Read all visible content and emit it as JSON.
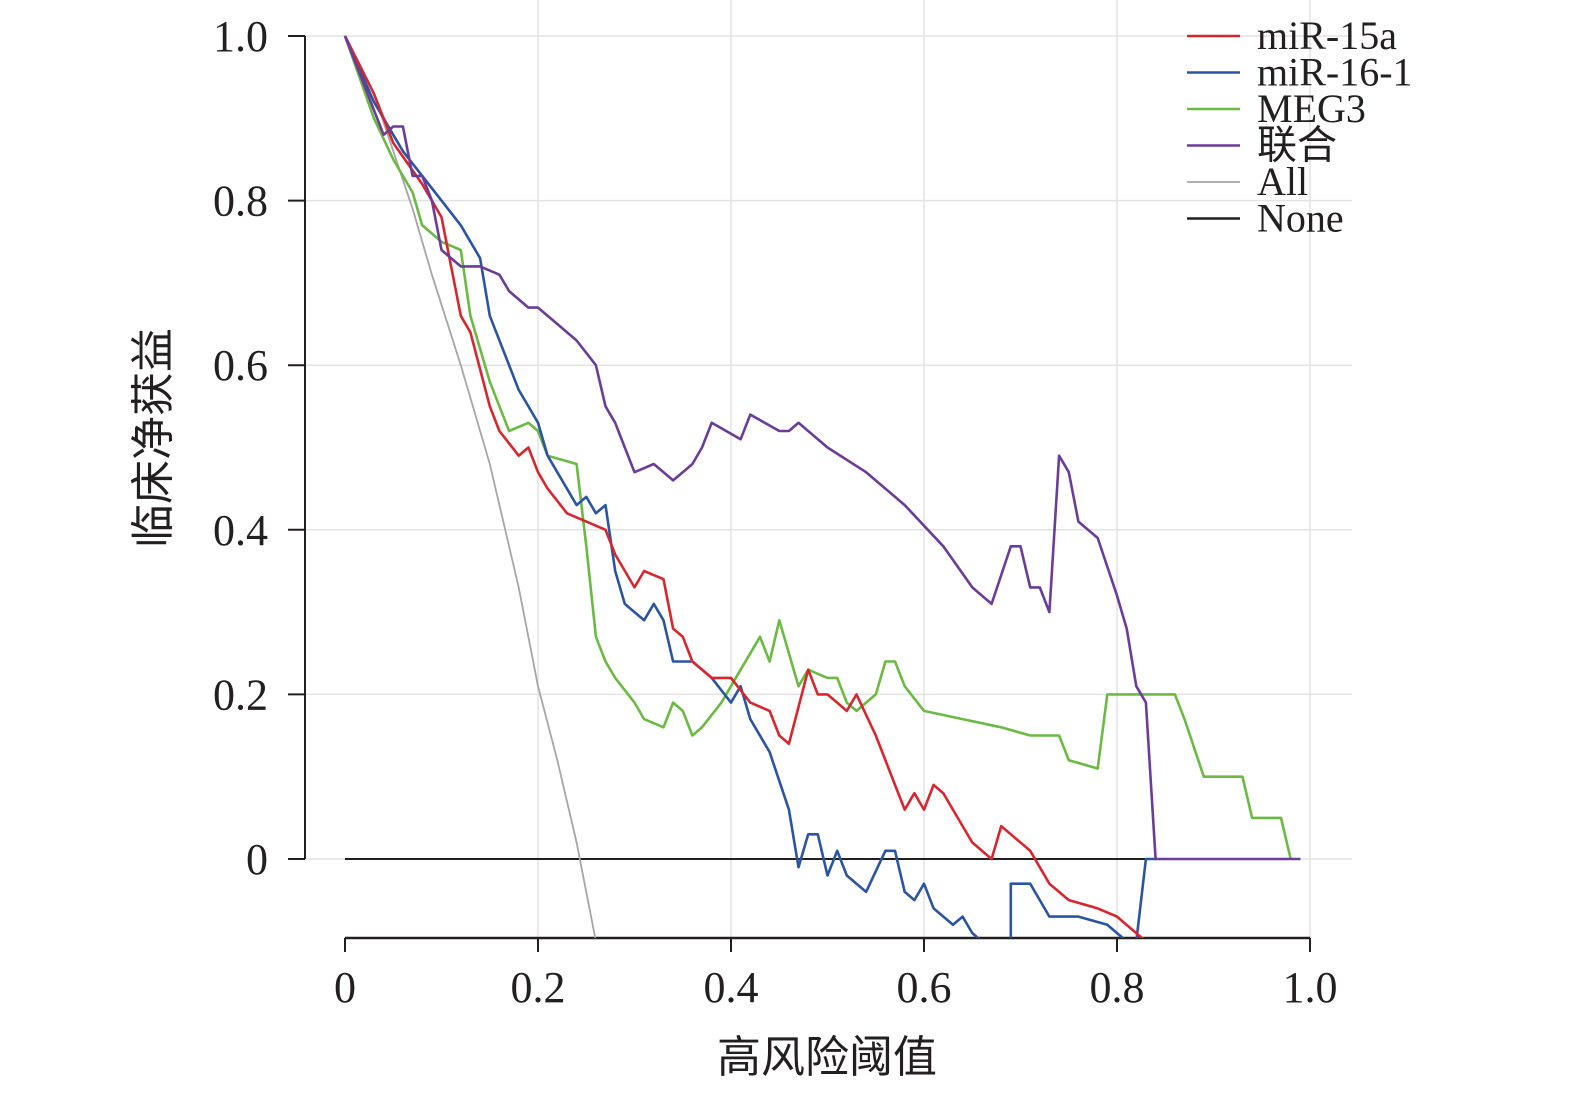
{
  "chart_data": {
    "type": "line",
    "title": "",
    "xlabel": "高风险阈值",
    "ylabel": "临床净获益",
    "xlim": [
      0,
      1.0
    ],
    "ylim": [
      -0.1,
      1.0
    ],
    "x_ticks": [
      0,
      0.2,
      0.4,
      0.6,
      0.8,
      1.0
    ],
    "y_ticks": [
      0,
      0.2,
      0.4,
      0.6,
      0.8,
      1.0
    ],
    "x_tick_labels": [
      "0",
      "0.2",
      "0.4",
      "0.6",
      "0.8",
      "1.0"
    ],
    "y_tick_labels": [
      "0",
      "0.2",
      "0.4",
      "0.6",
      "0.8",
      "1.0"
    ],
    "grid": true,
    "legend_position": "top-right",
    "series": [
      {
        "name": "miR-15a",
        "color": "#d7262e",
        "points": [
          [
            0,
            1.0
          ],
          [
            0.03,
            0.93
          ],
          [
            0.05,
            0.87
          ],
          [
            0.08,
            0.82
          ],
          [
            0.1,
            0.78
          ],
          [
            0.11,
            0.72
          ],
          [
            0.12,
            0.66
          ],
          [
            0.13,
            0.64
          ],
          [
            0.15,
            0.55
          ],
          [
            0.16,
            0.52
          ],
          [
            0.18,
            0.49
          ],
          [
            0.19,
            0.5
          ],
          [
            0.2,
            0.47
          ],
          [
            0.21,
            0.45
          ],
          [
            0.23,
            0.42
          ],
          [
            0.25,
            0.41
          ],
          [
            0.27,
            0.4
          ],
          [
            0.28,
            0.37
          ],
          [
            0.3,
            0.33
          ],
          [
            0.31,
            0.35
          ],
          [
            0.33,
            0.34
          ],
          [
            0.34,
            0.28
          ],
          [
            0.35,
            0.27
          ],
          [
            0.36,
            0.24
          ],
          [
            0.38,
            0.22
          ],
          [
            0.4,
            0.22
          ],
          [
            0.42,
            0.19
          ],
          [
            0.44,
            0.18
          ],
          [
            0.45,
            0.15
          ],
          [
            0.46,
            0.14
          ],
          [
            0.48,
            0.23
          ],
          [
            0.49,
            0.2
          ],
          [
            0.5,
            0.2
          ],
          [
            0.52,
            0.18
          ],
          [
            0.53,
            0.2
          ],
          [
            0.55,
            0.15
          ],
          [
            0.57,
            0.09
          ],
          [
            0.58,
            0.06
          ],
          [
            0.59,
            0.08
          ],
          [
            0.6,
            0.06
          ],
          [
            0.61,
            0.09
          ],
          [
            0.62,
            0.08
          ],
          [
            0.64,
            0.04
          ],
          [
            0.65,
            0.02
          ],
          [
            0.67,
            0.0
          ],
          [
            0.68,
            0.04
          ],
          [
            0.7,
            0.02
          ],
          [
            0.71,
            0.01
          ],
          [
            0.73,
            -0.03
          ],
          [
            0.75,
            -0.05
          ],
          [
            0.78,
            -0.06
          ],
          [
            0.8,
            -0.07
          ],
          [
            0.82,
            -0.09
          ],
          [
            0.83,
            -0.1
          ]
        ]
      },
      {
        "name": "miR-16-1",
        "color": "#2b54a2",
        "points": [
          [
            0,
            1.0
          ],
          [
            0.03,
            0.92
          ],
          [
            0.06,
            0.86
          ],
          [
            0.1,
            0.8
          ],
          [
            0.12,
            0.77
          ],
          [
            0.14,
            0.73
          ],
          [
            0.15,
            0.66
          ],
          [
            0.17,
            0.6
          ],
          [
            0.18,
            0.57
          ],
          [
            0.19,
            0.55
          ],
          [
            0.2,
            0.53
          ],
          [
            0.21,
            0.49
          ],
          [
            0.22,
            0.47
          ],
          [
            0.24,
            0.43
          ],
          [
            0.25,
            0.44
          ],
          [
            0.26,
            0.42
          ],
          [
            0.27,
            0.43
          ],
          [
            0.28,
            0.35
          ],
          [
            0.29,
            0.31
          ],
          [
            0.31,
            0.29
          ],
          [
            0.32,
            0.31
          ],
          [
            0.33,
            0.29
          ],
          [
            0.34,
            0.24
          ],
          [
            0.36,
            0.24
          ],
          [
            0.38,
            0.22
          ],
          [
            0.4,
            0.19
          ],
          [
            0.41,
            0.21
          ],
          [
            0.42,
            0.17
          ],
          [
            0.44,
            0.13
          ],
          [
            0.46,
            0.06
          ],
          [
            0.47,
            -0.01
          ],
          [
            0.48,
            0.03
          ],
          [
            0.49,
            0.03
          ],
          [
            0.5,
            -0.02
          ],
          [
            0.51,
            0.01
          ],
          [
            0.52,
            -0.02
          ],
          [
            0.54,
            -0.04
          ],
          [
            0.56,
            0.01
          ],
          [
            0.57,
            0.01
          ],
          [
            0.58,
            -0.04
          ],
          [
            0.59,
            -0.05
          ],
          [
            0.6,
            -0.03
          ],
          [
            0.61,
            -0.06
          ],
          [
            0.63,
            -0.08
          ],
          [
            0.64,
            -0.07
          ],
          [
            0.65,
            -0.09
          ],
          [
            0.66,
            -0.1
          ]
        ]
      },
      {
        "name": "miR-16-1",
        "color": "#2b54a2",
        "points": [
          [
            0.69,
            -0.1
          ],
          [
            0.69,
            -0.03
          ],
          [
            0.71,
            -0.03
          ],
          [
            0.72,
            -0.05
          ],
          [
            0.73,
            -0.07
          ],
          [
            0.76,
            -0.07
          ],
          [
            0.79,
            -0.08
          ],
          [
            0.81,
            -0.1
          ]
        ]
      },
      {
        "name": "miR-16-1",
        "color": "#2b54a2",
        "points": [
          [
            0.82,
            -0.1
          ],
          [
            0.83,
            0.0
          ],
          [
            0.84,
            0.0
          ]
        ]
      },
      {
        "name": "MEG3",
        "color": "#6aba43",
        "points": [
          [
            0,
            1.0
          ],
          [
            0.03,
            0.9
          ],
          [
            0.05,
            0.85
          ],
          [
            0.07,
            0.81
          ],
          [
            0.08,
            0.77
          ],
          [
            0.1,
            0.75
          ],
          [
            0.12,
            0.74
          ],
          [
            0.13,
            0.66
          ],
          [
            0.14,
            0.62
          ],
          [
            0.15,
            0.58
          ],
          [
            0.16,
            0.55
          ],
          [
            0.17,
            0.52
          ],
          [
            0.19,
            0.53
          ],
          [
            0.2,
            0.52
          ],
          [
            0.21,
            0.49
          ],
          [
            0.24,
            0.48
          ],
          [
            0.25,
            0.38
          ],
          [
            0.26,
            0.27
          ],
          [
            0.27,
            0.24
          ],
          [
            0.28,
            0.22
          ],
          [
            0.3,
            0.19
          ],
          [
            0.31,
            0.17
          ],
          [
            0.33,
            0.16
          ],
          [
            0.34,
            0.19
          ],
          [
            0.35,
            0.18
          ],
          [
            0.36,
            0.15
          ],
          [
            0.37,
            0.16
          ],
          [
            0.39,
            0.19
          ],
          [
            0.41,
            0.23
          ],
          [
            0.42,
            0.25
          ],
          [
            0.43,
            0.27
          ],
          [
            0.44,
            0.24
          ],
          [
            0.45,
            0.29
          ],
          [
            0.46,
            0.25
          ],
          [
            0.47,
            0.21
          ],
          [
            0.48,
            0.23
          ],
          [
            0.5,
            0.22
          ],
          [
            0.51,
            0.22
          ],
          [
            0.52,
            0.19
          ],
          [
            0.53,
            0.18
          ],
          [
            0.54,
            0.19
          ],
          [
            0.55,
            0.2
          ],
          [
            0.56,
            0.24
          ],
          [
            0.57,
            0.24
          ],
          [
            0.58,
            0.21
          ],
          [
            0.6,
            0.18
          ],
          [
            0.64,
            0.17
          ],
          [
            0.68,
            0.16
          ],
          [
            0.71,
            0.15
          ],
          [
            0.74,
            0.15
          ],
          [
            0.75,
            0.12
          ],
          [
            0.78,
            0.11
          ],
          [
            0.79,
            0.2
          ],
          [
            0.86,
            0.2
          ],
          [
            0.87,
            0.17
          ],
          [
            0.89,
            0.1
          ],
          [
            0.93,
            0.1
          ],
          [
            0.94,
            0.05
          ],
          [
            0.97,
            0.05
          ],
          [
            0.98,
            0.0
          ]
        ]
      },
      {
        "name": "联合",
        "color": "#6b3d98",
        "points": [
          [
            0,
            1.0
          ],
          [
            0.02,
            0.94
          ],
          [
            0.04,
            0.88
          ],
          [
            0.05,
            0.89
          ],
          [
            0.06,
            0.89
          ],
          [
            0.07,
            0.83
          ],
          [
            0.08,
            0.83
          ],
          [
            0.09,
            0.8
          ],
          [
            0.1,
            0.74
          ],
          [
            0.11,
            0.73
          ],
          [
            0.12,
            0.72
          ],
          [
            0.14,
            0.72
          ],
          [
            0.16,
            0.71
          ],
          [
            0.17,
            0.69
          ],
          [
            0.18,
            0.68
          ],
          [
            0.19,
            0.67
          ],
          [
            0.2,
            0.67
          ],
          [
            0.22,
            0.65
          ],
          [
            0.24,
            0.63
          ],
          [
            0.26,
            0.6
          ],
          [
            0.27,
            0.55
          ],
          [
            0.28,
            0.53
          ],
          [
            0.29,
            0.5
          ],
          [
            0.3,
            0.47
          ],
          [
            0.32,
            0.48
          ],
          [
            0.34,
            0.46
          ],
          [
            0.35,
            0.47
          ],
          [
            0.36,
            0.48
          ],
          [
            0.37,
            0.5
          ],
          [
            0.38,
            0.53
          ],
          [
            0.41,
            0.51
          ],
          [
            0.42,
            0.54
          ],
          [
            0.45,
            0.52
          ],
          [
            0.46,
            0.52
          ],
          [
            0.47,
            0.53
          ],
          [
            0.5,
            0.5
          ],
          [
            0.54,
            0.47
          ],
          [
            0.58,
            0.43
          ],
          [
            0.62,
            0.38
          ],
          [
            0.65,
            0.33
          ],
          [
            0.66,
            0.32
          ],
          [
            0.67,
            0.31
          ],
          [
            0.69,
            0.38
          ],
          [
            0.7,
            0.38
          ],
          [
            0.71,
            0.33
          ],
          [
            0.72,
            0.33
          ],
          [
            0.73,
            0.3
          ],
          [
            0.74,
            0.49
          ],
          [
            0.75,
            0.47
          ],
          [
            0.76,
            0.41
          ],
          [
            0.78,
            0.39
          ],
          [
            0.8,
            0.32
          ],
          [
            0.81,
            0.28
          ],
          [
            0.82,
            0.21
          ],
          [
            0.83,
            0.19
          ],
          [
            0.84,
            0.0
          ],
          [
            0.99,
            0.0
          ]
        ]
      },
      {
        "name": "All",
        "color": "#a6a6a6",
        "points": [
          [
            0,
            1.0
          ],
          [
            0.03,
            0.93
          ],
          [
            0.05,
            0.86
          ],
          [
            0.07,
            0.79
          ],
          [
            0.09,
            0.71
          ],
          [
            0.12,
            0.6
          ],
          [
            0.15,
            0.48
          ],
          [
            0.18,
            0.33
          ],
          [
            0.2,
            0.21
          ],
          [
            0.22,
            0.12
          ],
          [
            0.24,
            0.02
          ],
          [
            0.26,
            -0.1
          ]
        ]
      },
      {
        "name": "None",
        "color": "#231f20",
        "points": [
          [
            0,
            0
          ],
          [
            0.99,
            0
          ]
        ]
      }
    ],
    "legend": [
      {
        "label": "miR-15a",
        "color": "#d7262e"
      },
      {
        "label": "miR-16-1",
        "color": "#2b54a2"
      },
      {
        "label": "MEG3",
        "color": "#6aba43"
      },
      {
        "label": "联合",
        "color": "#6b3d98"
      },
      {
        "label": "All",
        "color": "#a6a6a6"
      },
      {
        "label": "None",
        "color": "#231f20"
      }
    ]
  }
}
